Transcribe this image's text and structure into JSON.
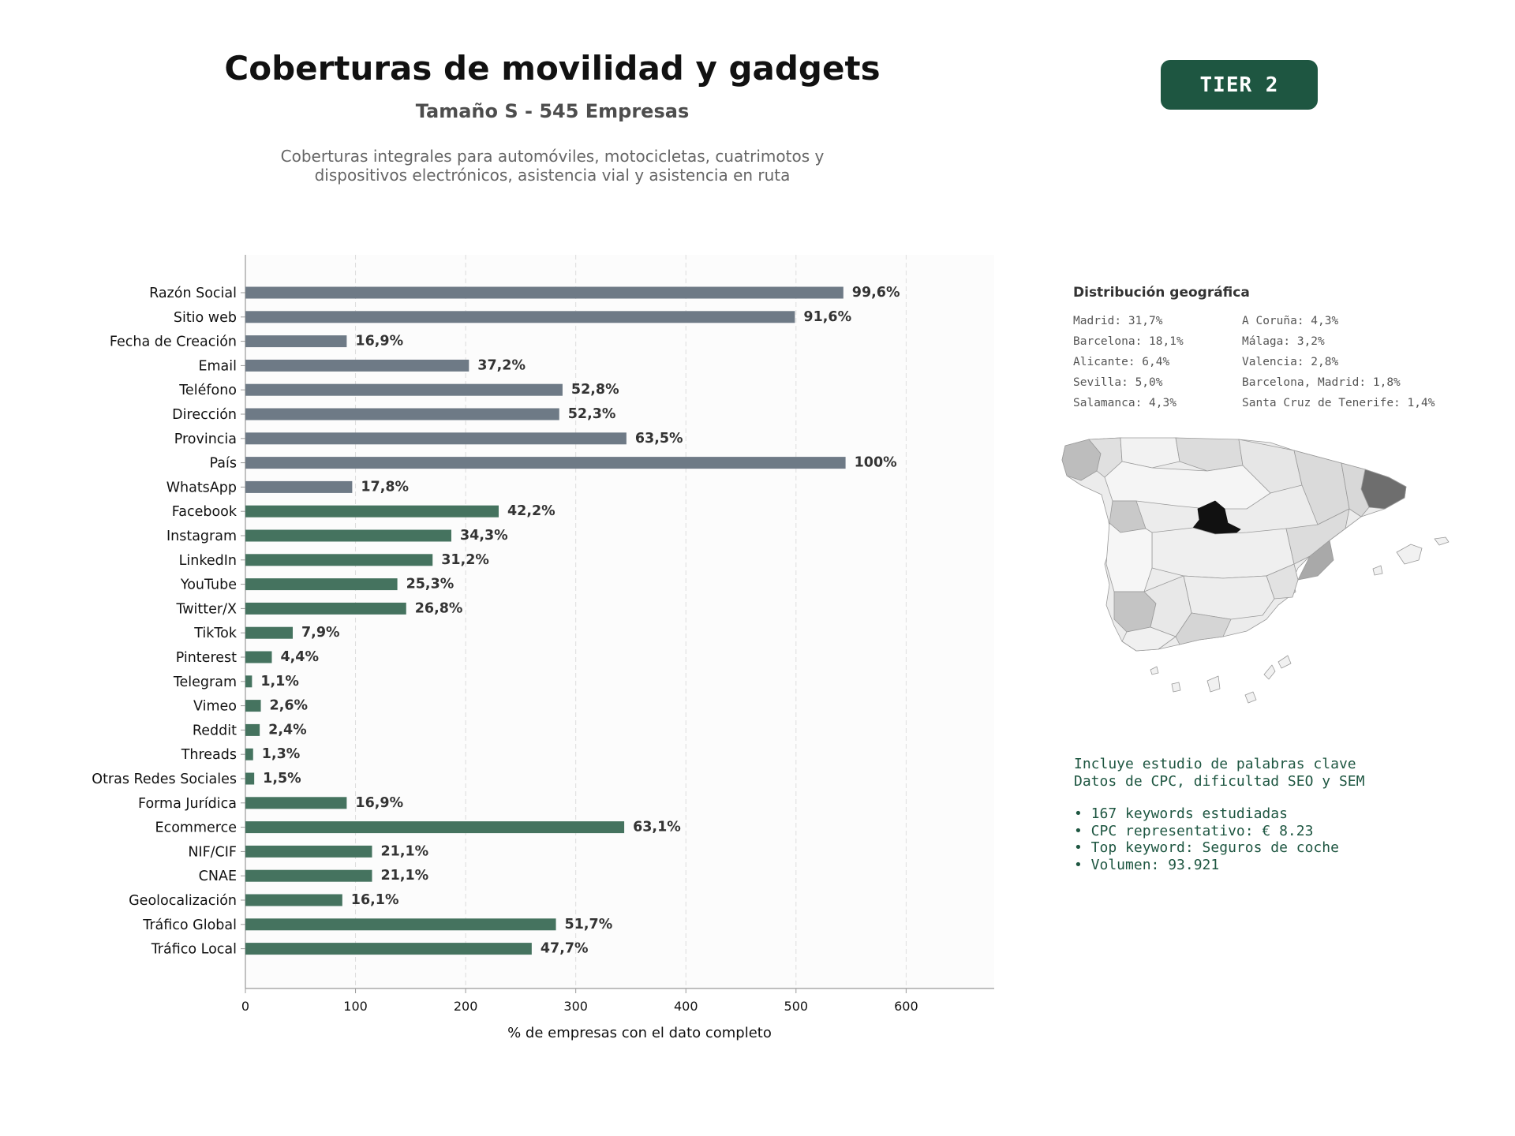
{
  "header": {
    "title": "Coberturas de movilidad y gadgets",
    "subtitle": "Tamaño S - 545 Empresas",
    "description_line1": "Coberturas integrales para automóviles, motocicletas, cuatrimotos y",
    "description_line2": "dispositivos electrónicos, asistencia vial y asistencia en ruta",
    "tier_label": "TIER 2"
  },
  "chart_data": {
    "type": "bar",
    "orientation": "horizontal",
    "xlabel": "% de empresas con el dato completo",
    "xlim": [
      0,
      680
    ],
    "xticks": [
      0,
      100,
      200,
      300,
      400,
      500,
      600
    ],
    "grid": true,
    "categories": [
      "Razón Social",
      "Sitio web",
      "Fecha de Creación",
      "Email",
      "Teléfono",
      "Dirección",
      "Provincia",
      "País",
      "WhatsApp",
      "Facebook",
      "Instagram",
      "LinkedIn",
      "YouTube",
      "Twitter/X",
      "TikTok",
      "Pinterest",
      "Telegram",
      "Vimeo",
      "Reddit",
      "Threads",
      "Otras Redes Sociales",
      "Forma Jurídica",
      "Ecommerce",
      "NIF/CIF",
      "CNAE",
      "Geolocalización",
      "Tráfico Global",
      "Tráfico Local"
    ],
    "values": [
      543,
      499,
      92,
      203,
      288,
      285,
      346,
      545,
      97,
      230,
      187,
      170,
      138,
      146,
      43,
      24,
      6,
      14,
      13,
      7,
      8,
      92,
      344,
      115,
      115,
      88,
      282,
      260
    ],
    "labels": [
      "99,6%",
      "91,6%",
      "16,9%",
      "37,2%",
      "52,8%",
      "52,3%",
      "63,5%",
      "100%",
      "17,8%",
      "42,2%",
      "34,3%",
      "31,2%",
      "25,3%",
      "26,8%",
      "7,9%",
      "4,4%",
      "1,1%",
      "2,6%",
      "2,4%",
      "1,3%",
      "1,5%",
      "16,9%",
      "63,1%",
      "21,1%",
      "21,1%",
      "16,1%",
      "51,7%",
      "47,7%"
    ],
    "group_split_index": 9,
    "colors": {
      "basic": "#6e7a86",
      "extended": "#45735f",
      "label": "#333333"
    }
  },
  "geo": {
    "title": "Distribución geográfica",
    "left": [
      "Madrid: 31,7%",
      "Barcelona: 18,1%",
      "Alicante: 6,4%",
      "Sevilla: 5,0%",
      "Salamanca: 4,3%"
    ],
    "right": [
      "A Coruña: 4,3%",
      "Málaga: 3,2%",
      "Valencia: 2,8%",
      "Barcelona, Madrid: 1,8%",
      "Santa Cruz de Tenerife: 1,4%"
    ]
  },
  "keywords": {
    "line1": "Incluye estudio de palabras clave",
    "line2": "Datos de CPC, dificultad SEO y SEM",
    "bullets": [
      "• 167 keywords estudiadas",
      "• CPC representativo: € 8.23",
      "• Top keyword: Seguros de coche",
      "• Volumen: 93.921"
    ]
  }
}
